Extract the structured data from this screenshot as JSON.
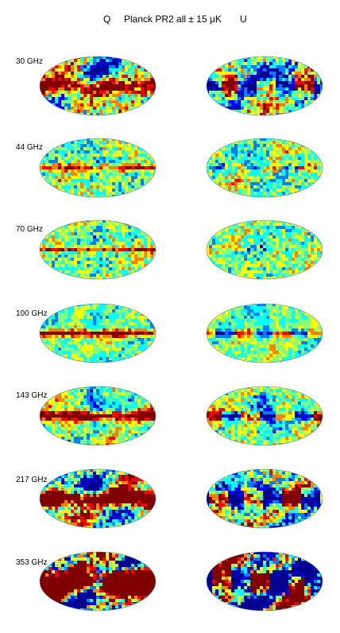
{
  "header": {
    "left_label": "Q",
    "title": "Planck PR2 all ± 15 μK",
    "right_label": "U"
  },
  "colormap": [
    "#00008f",
    "#0000ff",
    "#0080ff",
    "#00ffff",
    "#80ff80",
    "#ffff00",
    "#ff8000",
    "#ff0000",
    "#800000"
  ],
  "rows": [
    {
      "frequency": "30 GHz"
    },
    {
      "frequency": "44 GHz"
    },
    {
      "frequency": "70 GHz"
    },
    {
      "frequency": "100 GHz"
    },
    {
      "frequency": "143 GHz"
    },
    {
      "frequency": "217 GHz"
    },
    {
      "frequency": "353 GHz"
    }
  ]
}
